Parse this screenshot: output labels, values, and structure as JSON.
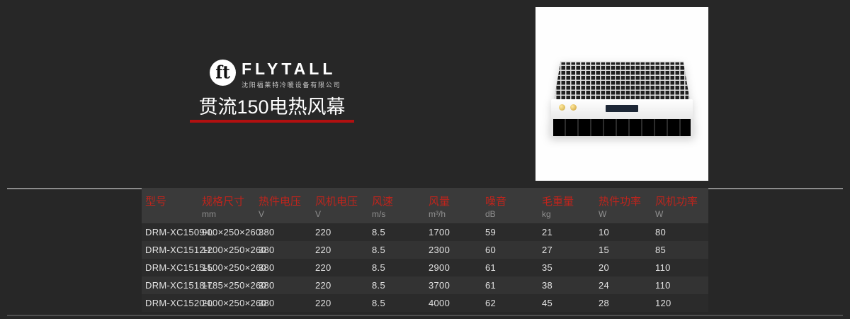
{
  "brand": {
    "name": "FLYTALL",
    "company": "沈阳福莱特冷暖设备有限公司",
    "logo_glyph": "ft"
  },
  "title": {
    "text": "贯流150电热风幕"
  },
  "table": {
    "columns": [
      {
        "label": "型号",
        "unit": ""
      },
      {
        "label": "规格尺寸",
        "unit": "mm"
      },
      {
        "label": "热件电压",
        "unit": "V"
      },
      {
        "label": "风机电压",
        "unit": "V"
      },
      {
        "label": "风速",
        "unit": "m/s"
      },
      {
        "label": "风量",
        "unit": "m³/h"
      },
      {
        "label": "噪音",
        "unit": "dB"
      },
      {
        "label": "毛重量",
        "unit": "kg"
      },
      {
        "label": "热件功率",
        "unit": "W"
      },
      {
        "label": "风机功率",
        "unit": "W"
      }
    ],
    "rows": [
      [
        "DRM-XC1509-L",
        "900×250×260",
        "380",
        "220",
        "8.5",
        "1700",
        "59",
        "21",
        "10",
        "80"
      ],
      [
        "DRM-XC1512-L",
        "1200×250×260",
        "380",
        "220",
        "8.5",
        "2300",
        "60",
        "27",
        "15",
        "85"
      ],
      [
        "DRM-XC1515-L",
        "1500×250×260",
        "380",
        "220",
        "8.5",
        "2900",
        "61",
        "35",
        "20",
        "110"
      ],
      [
        "DRM-XC1518-L",
        "1785×250×260",
        "380",
        "220",
        "8.5",
        "3700",
        "61",
        "38",
        "24",
        "110"
      ],
      [
        "DRM-XC1520-L",
        "2000×250×260",
        "380",
        "220",
        "8.5",
        "4000",
        "62",
        "45",
        "28",
        "120"
      ]
    ]
  },
  "colors": {
    "header_red": "#c0241c",
    "title_underline_red": "#b21010",
    "page_background": "#272727"
  }
}
